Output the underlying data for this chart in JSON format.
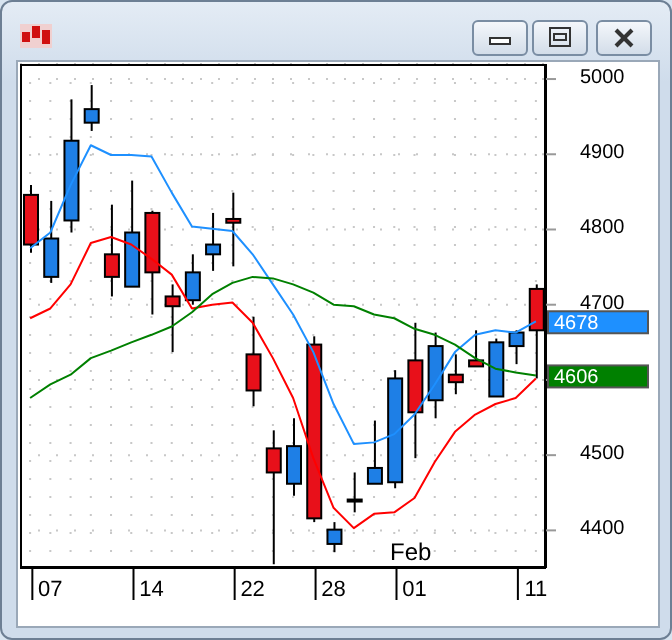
{
  "chart_data": {
    "type": "candlestick",
    "categories": [
      null,
      "07",
      null,
      null,
      null,
      null,
      "14",
      null,
      null,
      null,
      null,
      "22",
      null,
      null,
      null,
      "28",
      null,
      null,
      null,
      "01",
      null,
      null,
      null,
      null,
      null,
      "11"
    ],
    "ohlc": [
      [
        4846,
        4859,
        4769,
        4780
      ],
      [
        4737,
        4838,
        4729,
        4788
      ],
      [
        4812,
        4973,
        4796,
        4918
      ],
      [
        4942,
        4992,
        4931,
        4960
      ],
      [
        4767,
        4833,
        4711,
        4737
      ],
      [
        4724,
        4865,
        4724,
        4796
      ],
      [
        4822,
        4825,
        4687,
        4743
      ],
      [
        4711,
        4727,
        4637,
        4698
      ],
      [
        4706,
        4767,
        4700,
        4743
      ],
      [
        4767,
        4822,
        4745,
        4780
      ],
      [
        4814,
        4849,
        4751,
        4809
      ],
      [
        4634,
        4684,
        4565,
        4586
      ],
      [
        4509,
        4533,
        4355,
        4477
      ],
      [
        4462,
        4549,
        4446,
        4512
      ],
      [
        4647,
        4658,
        4411,
        4416
      ],
      [
        4382,
        4411,
        4371,
        4401
      ],
      [
        4441,
        4477,
        4424,
        4440
      ],
      [
        4462,
        4546,
        4462,
        4483
      ],
      [
        4464,
        4613,
        4456,
        4602
      ],
      [
        4626,
        4676,
        4496,
        4557
      ],
      [
        4573,
        4663,
        4549,
        4645
      ],
      [
        4607,
        4634,
        4581,
        4597
      ],
      [
        4626,
        4666,
        4618,
        4618
      ],
      [
        4578,
        4655,
        4578,
        4650
      ],
      [
        4645,
        4666,
        4621,
        4663
      ],
      [
        4721,
        4727,
        4602,
        4666
      ]
    ],
    "colors": [
      "#e8101a",
      "#1e7fe6",
      "#1e7fe6",
      "#1e7fe6",
      "#e8101a",
      "#1e7fe6",
      "#e8101a",
      "#e8101a",
      "#1e7fe6",
      "#1e7fe6",
      "#e8101a",
      "#e8101a",
      "#e8101a",
      "#1e7fe6",
      "#e8101a",
      "#1e7fe6",
      "#e8101a",
      "#1e7fe6",
      "#1e7fe6",
      "#e8101a",
      "#1e7fe6",
      "#e8101a",
      "#e8101a",
      "#1e7fe6",
      "#1e7fe6",
      "#e8101a"
    ],
    "series": [
      {
        "type": "line",
        "color": "#1e90ff",
        "values": [
          4775,
          4796,
          4859,
          4912,
          4899,
          4899,
          4897,
          4849,
          4804,
          4801,
          4798,
          4767,
          4727,
          4687,
          4637,
          4568,
          4515,
          4517,
          4528,
          4554,
          4594,
          4637,
          4660,
          4666,
          4663,
          4678
        ],
        "value_labels": [
          null,
          null,
          null,
          null,
          null,
          null,
          null,
          null,
          null,
          null,
          null,
          null,
          null,
          null,
          null,
          null,
          null,
          null,
          null,
          null,
          null,
          null,
          null,
          null,
          null,
          "4678"
        ]
      },
      {
        "type": "line",
        "color": "#ff0000",
        "values": [
          4682,
          4695,
          4727,
          4782,
          4790,
          4780,
          4761,
          4740,
          4695,
          4700,
          4703,
          4676,
          4629,
          4576,
          4496,
          4430,
          4403,
          4422,
          4424,
          4443,
          4491,
          4531,
          4554,
          4568,
          4576,
          4602
        ]
      },
      {
        "type": "line",
        "color": "#008000",
        "values": [
          4576,
          4594,
          4607,
          4629,
          4639,
          4650,
          4660,
          4671,
          4690,
          4714,
          4729,
          4737,
          4735,
          4727,
          4716,
          4700,
          4698,
          4687,
          4682,
          4668,
          4660,
          4647,
          4629,
          4615,
          4610,
          4606
        ],
        "value_labels": [
          null,
          null,
          null,
          null,
          null,
          null,
          null,
          null,
          null,
          null,
          null,
          null,
          null,
          null,
          null,
          null,
          null,
          null,
          null,
          null,
          null,
          null,
          null,
          null,
          null,
          "4606"
        ]
      }
    ],
    "ylim": [
      4350,
      5020
    ],
    "yticks": [
      4400,
      4500,
      {
        "value": 4600,
        "label": null
      },
      4700,
      4800,
      4900,
      5000
    ],
    "grid": true,
    "annotations": [
      "Feb"
    ]
  }
}
